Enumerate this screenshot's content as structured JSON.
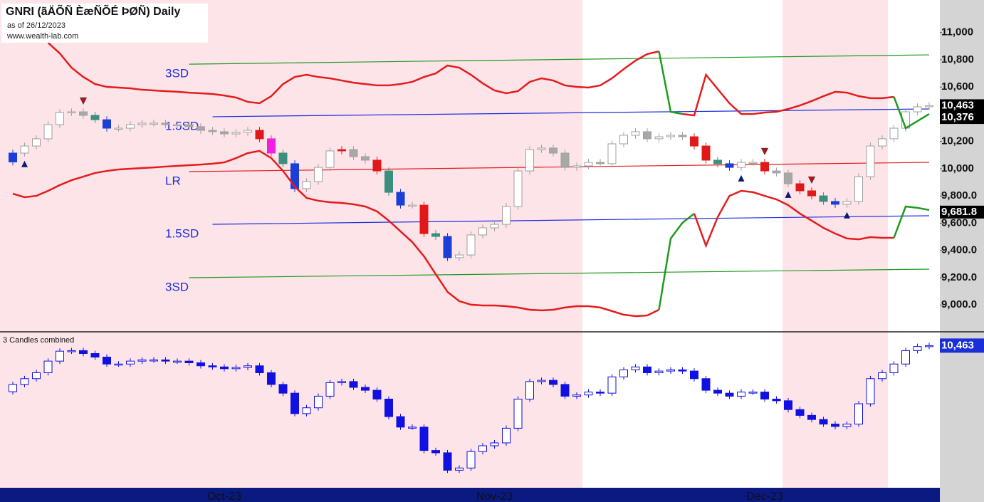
{
  "chart_data": {
    "type": "candlestick",
    "title": "GNRI (ãÄÕÑ ÈæÑÕÉ ÞØÑ) Daily",
    "subtitle": "as of 26/12/2023",
    "source": "www.wealth-lab.com",
    "ylim": [
      8808,
      11239
    ],
    "yticks": [
      {
        "value": 11000,
        "label": "11,000"
      },
      {
        "value": 10800,
        "label": "10,800"
      },
      {
        "value": 10600,
        "label": "10,600"
      },
      {
        "value": 10200,
        "label": "10,200"
      },
      {
        "value": 10000,
        "label": "10,000"
      },
      {
        "value": 9800,
        "label": "9,800.0"
      },
      {
        "value": 9600,
        "label": "9,600.0"
      },
      {
        "value": 9400,
        "label": "9,400.0"
      },
      {
        "value": 9200,
        "label": "9,200.0"
      },
      {
        "value": 9000,
        "label": "9,000.0"
      }
    ],
    "x_labels": [
      {
        "index": 18,
        "label": "Oct-23"
      },
      {
        "index": 41,
        "label": "Nov-23"
      },
      {
        "index": 64,
        "label": "Dec-23"
      }
    ],
    "open": [
      10050,
      10115,
      10167,
      10220,
      10324,
      10413,
      10418,
      10392,
      10360,
      10298,
      10298,
      10324,
      10335,
      10335,
      10324,
      10324,
      10309,
      10282,
      10272,
      10256,
      10267,
      10282,
      10220,
      10115,
      10037,
      9854,
      9906,
      10010,
      10131,
      10141,
      10089,
      10063,
      9984,
      9827,
      9733,
      9733,
      9524,
      9503,
      9347,
      9367,
      9514,
      9566,
      9592,
      9723,
      9984,
      10141,
      10152,
      10115,
      10010,
      10021,
      10047,
      10037,
      10183,
      10246,
      10272,
      10220,
      10235,
      10246,
      10235,
      10167,
      10063,
      10037,
      10010,
      10047,
      10047,
      9984,
      9969,
      9890,
      9838,
      9801,
      9760,
      9739,
      9760,
      9942,
      10167,
      10220,
      10298,
      10418,
      10455
    ],
    "high": [
      10140,
      10192,
      10245,
      10349,
      10438,
      10443,
      10443,
      10417,
      10385,
      10323,
      10349,
      10360,
      10360,
      10360,
      10349,
      10349,
      10334,
      10307,
      10297,
      10292,
      10307,
      10307,
      10245,
      10140,
      10062,
      9931,
      10035,
      10156,
      10166,
      10166,
      10114,
      10088,
      10009,
      9852,
      9758,
      9758,
      9549,
      9528,
      9392,
      9539,
      9591,
      9617,
      9748,
      10009,
      10166,
      10177,
      10177,
      10140,
      10046,
      10072,
      10072,
      10208,
      10271,
      10297,
      10297,
      10260,
      10271,
      10271,
      10260,
      10192,
      10088,
      10062,
      10072,
      10072,
      10072,
      10009,
      9994,
      9915,
      9863,
      9826,
      9785,
      9785,
      9967,
      10192,
      10245,
      10323,
      10443,
      10480,
      10488
    ],
    "low": [
      10025,
      10090,
      10142,
      10195,
      10299,
      10388,
      10367,
      10335,
      10273,
      10273,
      10273,
      10299,
      10310,
      10299,
      10299,
      10284,
      10257,
      10247,
      10231,
      10231,
      10242,
      10195,
      10090,
      10012,
      9829,
      9829,
      9881,
      9985,
      10106,
      10064,
      10038,
      9959,
      9802,
      9708,
      9708,
      9499,
      9478,
      9322,
      9322,
      9342,
      9489,
      9541,
      9567,
      9698,
      9959,
      10116,
      10090,
      9985,
      9985,
      9996,
      10012,
      10012,
      10158,
      10221,
      10195,
      10195,
      10210,
      10210,
      10142,
      10038,
      10012,
      9985,
      9985,
      10022,
      9959,
      9944,
      9865,
      9813,
      9776,
      9735,
      9714,
      9714,
      9735,
      9917,
      10142,
      10195,
      10273,
      10393,
      10430
    ],
    "close": [
      10115,
      10167,
      10220,
      10324,
      10413,
      10418,
      10392,
      10360,
      10298,
      10298,
      10324,
      10335,
      10335,
      10324,
      10324,
      10309,
      10282,
      10272,
      10256,
      10267,
      10282,
      10220,
      10115,
      10037,
      9854,
      9906,
      10010,
      10131,
      10141,
      10089,
      10063,
      9984,
      9827,
      9733,
      9733,
      9524,
      9503,
      9347,
      9367,
      9514,
      9566,
      9592,
      9723,
      9984,
      10141,
      10152,
      10115,
      10010,
      10021,
      10047,
      10037,
      10183,
      10246,
      10272,
      10220,
      10235,
      10246,
      10235,
      10167,
      10063,
      10037,
      10010,
      10047,
      10047,
      9984,
      9969,
      9890,
      9838,
      9801,
      9760,
      9739,
      9760,
      9942,
      10167,
      10220,
      10298,
      10418,
      10455,
      10463
    ],
    "up_color": "#ffffff",
    "down_color": "#a8a8a8",
    "edge_color": "#a0a0a0",
    "highlight": {
      "0": "#1a3fd8",
      "7": "#3a8f7f",
      "8": "#1a3fd8",
      "21": "#e01818",
      "22": "#f020e0",
      "23": "#3a8f7f",
      "24": "#1a3fd8",
      "28": "#e01818",
      "31": "#e01818",
      "32": "#3a8f7f",
      "33": "#1a3fd8",
      "35": "#e01818",
      "36": "#3a8f7f",
      "37": "#1a3fd8",
      "58": "#e01818",
      "59": "#e01818",
      "60": "#3a8f7f",
      "61": "#1a3fd8",
      "64": "#e01818",
      "67": "#e01818",
      "68": "#e01818",
      "69": "#3a8f7f",
      "70": "#1a3fd8"
    },
    "bands": [
      {
        "color": "#e41c1c",
        "values": [
          null,
          null,
          null,
          10925,
          10847,
          10742,
          10674,
          10622,
          10601,
          10596,
          10591,
          10580,
          10575,
          10570,
          10565,
          10559,
          10554,
          10549,
          10538,
          10523,
          10491,
          10481,
          10533,
          10622,
          10674,
          10690,
          10674,
          10664,
          10648,
          10632,
          10622,
          10612,
          10612,
          10622,
          10638,
          10674,
          10700,
          10758,
          10742,
          10690,
          10627,
          10575,
          10554,
          10570,
          10638,
          10664,
          10648,
          10612,
          10601,
          10596,
          10612,
          10664,
          10732,
          10794,
          10842,
          10862,
          null,
          10402,
          10392,
          10690,
          10585,
          10481,
          10402,
          10402,
          10413,
          10418,
          10439,
          10465,
          10497,
          10533,
          10565,
          10559,
          10533,
          10518,
          10518,
          10528,
          null,
          null,
          null
        ]
      },
      {
        "color": "#1f9a1f",
        "values": [
          null,
          null,
          null,
          null,
          null,
          null,
          null,
          null,
          null,
          null,
          null,
          null,
          null,
          null,
          null,
          null,
          null,
          null,
          null,
          null,
          null,
          null,
          null,
          null,
          null,
          null,
          null,
          null,
          null,
          null,
          null,
          null,
          null,
          null,
          null,
          null,
          null,
          null,
          null,
          null,
          null,
          null,
          null,
          null,
          null,
          null,
          null,
          null,
          null,
          null,
          null,
          null,
          null,
          null,
          null,
          10862,
          10418,
          10402,
          null,
          null,
          null,
          null,
          null,
          null,
          null,
          null,
          null,
          null,
          null,
          null,
          null,
          null,
          null,
          null,
          null,
          10528,
          10298,
          10350,
          10402
        ]
      },
      {
        "color": "#e41c1c",
        "values": [
          9817,
          9791,
          9801,
          9838,
          9880,
          9916,
          9942,
          9969,
          9984,
          9995,
          10000,
          10005,
          10010,
          10016,
          10021,
          10026,
          10031,
          10037,
          10047,
          10078,
          10115,
          10131,
          10078,
          9984,
          9869,
          9786,
          9765,
          9754,
          9749,
          9739,
          9723,
          9687,
          9619,
          9540,
          9462,
          9357,
          9226,
          9096,
          9028,
          9002,
          8996,
          8996,
          8991,
          8981,
          8965,
          8960,
          8965,
          8981,
          8991,
          8991,
          8981,
          8955,
          8928,
          8918,
          8923,
          8965,
          null,
          null,
          9671,
          9435,
          9645,
          9801,
          9838,
          9828,
          9801,
          9775,
          9733,
          9671,
          9619,
          9566,
          9524,
          9488,
          9482,
          9498,
          9493,
          9493,
          null,
          null,
          null
        ]
      },
      {
        "color": "#1f9a1f",
        "values": [
          null,
          null,
          null,
          null,
          null,
          null,
          null,
          null,
          null,
          null,
          null,
          null,
          null,
          null,
          null,
          null,
          null,
          null,
          null,
          null,
          null,
          null,
          null,
          null,
          null,
          null,
          null,
          null,
          null,
          null,
          null,
          null,
          null,
          null,
          null,
          null,
          null,
          null,
          null,
          null,
          null,
          null,
          null,
          null,
          null,
          null,
          null,
          null,
          null,
          null,
          null,
          null,
          null,
          null,
          null,
          8965,
          9488,
          9603,
          9671,
          null,
          null,
          null,
          null,
          null,
          null,
          null,
          null,
          null,
          null,
          null,
          null,
          null,
          null,
          null,
          null,
          9493,
          9723,
          9713,
          9697
        ]
      }
    ],
    "channel": [
      {
        "label": "3SD",
        "color": "#1f9a1f",
        "x": [
          15,
          78
        ],
        "values": [
          10768,
          10836
        ]
      },
      {
        "label": "1.5SD",
        "color": "#1c2ee0",
        "x": [
          17,
          78
        ],
        "values": [
          10382,
          10439
        ]
      },
      {
        "label": "LR",
        "color": "#e41c1c",
        "x": [
          15,
          78
        ],
        "values": [
          9979,
          10047
        ]
      },
      {
        "label": "1.5SD",
        "color": "#1c2ee0",
        "x": [
          17,
          78
        ],
        "values": [
          9592,
          9655
        ]
      },
      {
        "label": "3SD",
        "color": "#1f9a1f",
        "x": [
          15,
          78
        ],
        "values": [
          9200,
          9263
        ]
      }
    ],
    "signals": [
      {
        "index": 1,
        "kind": "buy"
      },
      {
        "index": 62,
        "kind": "buy"
      },
      {
        "index": 66,
        "kind": "buy"
      },
      {
        "index": 71,
        "kind": "buy"
      },
      {
        "index": 6,
        "kind": "sell"
      },
      {
        "index": 64,
        "kind": "sell"
      },
      {
        "index": 68,
        "kind": "sell"
      }
    ],
    "markers": [
      {
        "value": 10463,
        "label": "10,463",
        "color": "#000000"
      },
      {
        "value": 10376,
        "label": "10,376",
        "color": "#000000"
      },
      {
        "value": 9681.8,
        "label": "9,681.8",
        "color": "#000000"
      }
    ],
    "lower": {
      "title": "3 Candles combined",
      "ylim": [
        9190,
        10580
      ],
      "color": "#1010e0",
      "marker": {
        "value": 10463,
        "label": "10,463",
        "color": "#1a2fd8"
      }
    }
  }
}
